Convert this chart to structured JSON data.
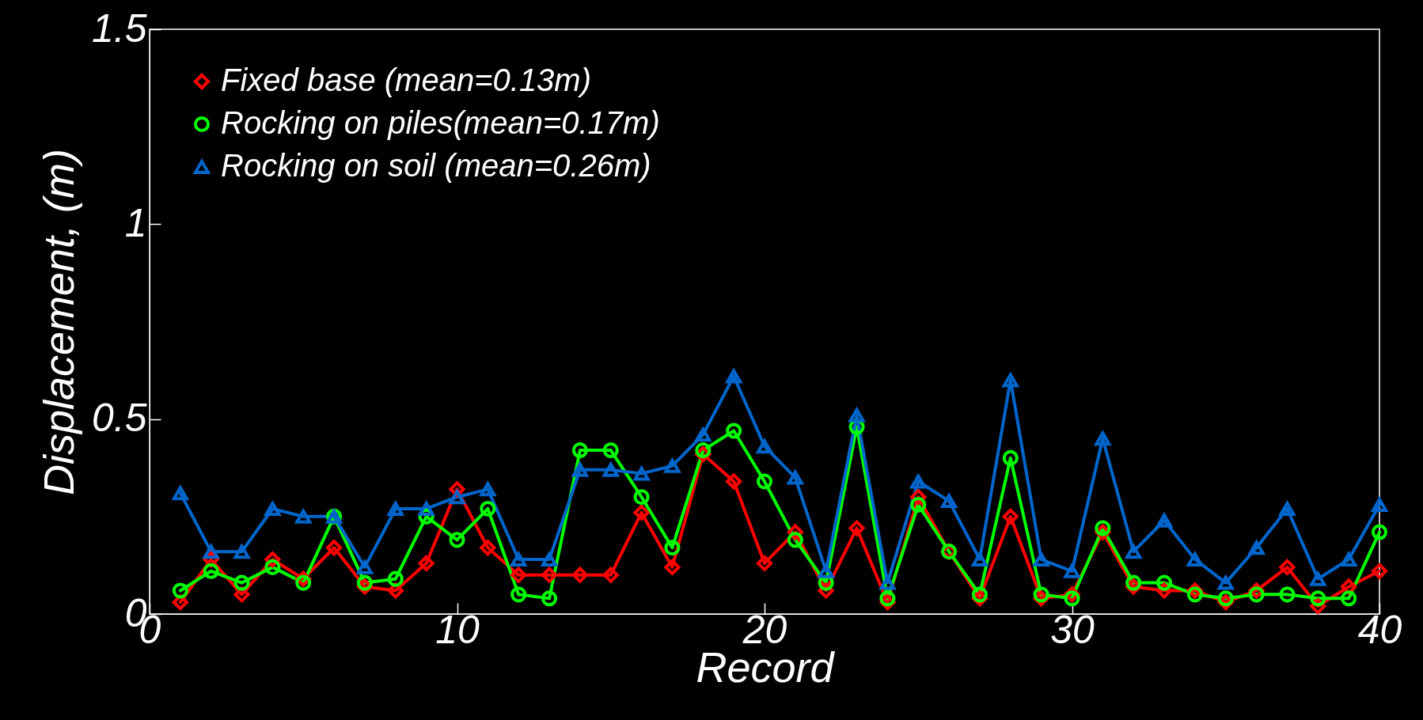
{
  "chart_data": {
    "type": "line",
    "xlabel": "Record",
    "ylabel": "Displacement, (m)",
    "x": [
      1,
      2,
      3,
      4,
      5,
      6,
      7,
      8,
      9,
      10,
      11,
      12,
      13,
      14,
      15,
      16,
      17,
      18,
      19,
      20,
      21,
      22,
      23,
      24,
      25,
      26,
      27,
      28,
      29,
      30,
      31,
      32,
      33,
      34,
      35,
      36,
      37,
      38,
      39,
      40
    ],
    "series": [
      {
        "name": "Fixed base (mean=0.13m)",
        "color": "#ff0000",
        "marker": "diamond",
        "values": [
          0.03,
          0.14,
          0.05,
          0.14,
          0.09,
          0.17,
          0.07,
          0.06,
          0.13,
          0.32,
          0.17,
          0.1,
          0.1,
          0.1,
          0.1,
          0.26,
          0.12,
          0.41,
          0.34,
          0.13,
          0.21,
          0.06,
          0.22,
          0.03,
          0.3,
          0.16,
          0.04,
          0.25,
          0.04,
          0.05,
          0.21,
          0.07,
          0.06,
          0.06,
          0.03,
          0.06,
          0.12,
          0.02,
          0.07,
          0.11
        ]
      },
      {
        "name": "Rocking on piles(mean=0.17m)",
        "color": "#00ff00",
        "marker": "circle",
        "values": [
          0.06,
          0.11,
          0.08,
          0.12,
          0.08,
          0.25,
          0.08,
          0.09,
          0.25,
          0.19,
          0.27,
          0.05,
          0.04,
          0.42,
          0.42,
          0.3,
          0.17,
          0.42,
          0.47,
          0.34,
          0.19,
          0.08,
          0.48,
          0.04,
          0.28,
          0.16,
          0.05,
          0.4,
          0.05,
          0.04,
          0.22,
          0.08,
          0.08,
          0.05,
          0.04,
          0.05,
          0.05,
          0.04,
          0.04,
          0.21
        ]
      },
      {
        "name": "Rocking on soil (mean=0.26m)",
        "color": "#0066cc",
        "marker": "triangle",
        "values": [
          0.31,
          0.16,
          0.16,
          0.27,
          0.25,
          0.25,
          0.12,
          0.27,
          0.27,
          0.3,
          0.32,
          0.14,
          0.14,
          0.37,
          0.37,
          0.36,
          0.38,
          0.46,
          0.61,
          0.43,
          0.35,
          0.11,
          0.51,
          0.08,
          0.34,
          0.29,
          0.14,
          0.6,
          0.14,
          0.11,
          0.45,
          0.16,
          0.24,
          0.14,
          0.08,
          0.17,
          0.27,
          0.09,
          0.14,
          0.28
        ]
      }
    ],
    "xlim": [
      0,
      40
    ],
    "xticks": [
      0,
      10,
      20,
      30,
      40
    ],
    "ylim": [
      0,
      1.5
    ],
    "yticks": [
      0,
      0.5,
      1,
      1.5
    ],
    "legend": "top left",
    "line_style": "solid",
    "grid": false
  }
}
